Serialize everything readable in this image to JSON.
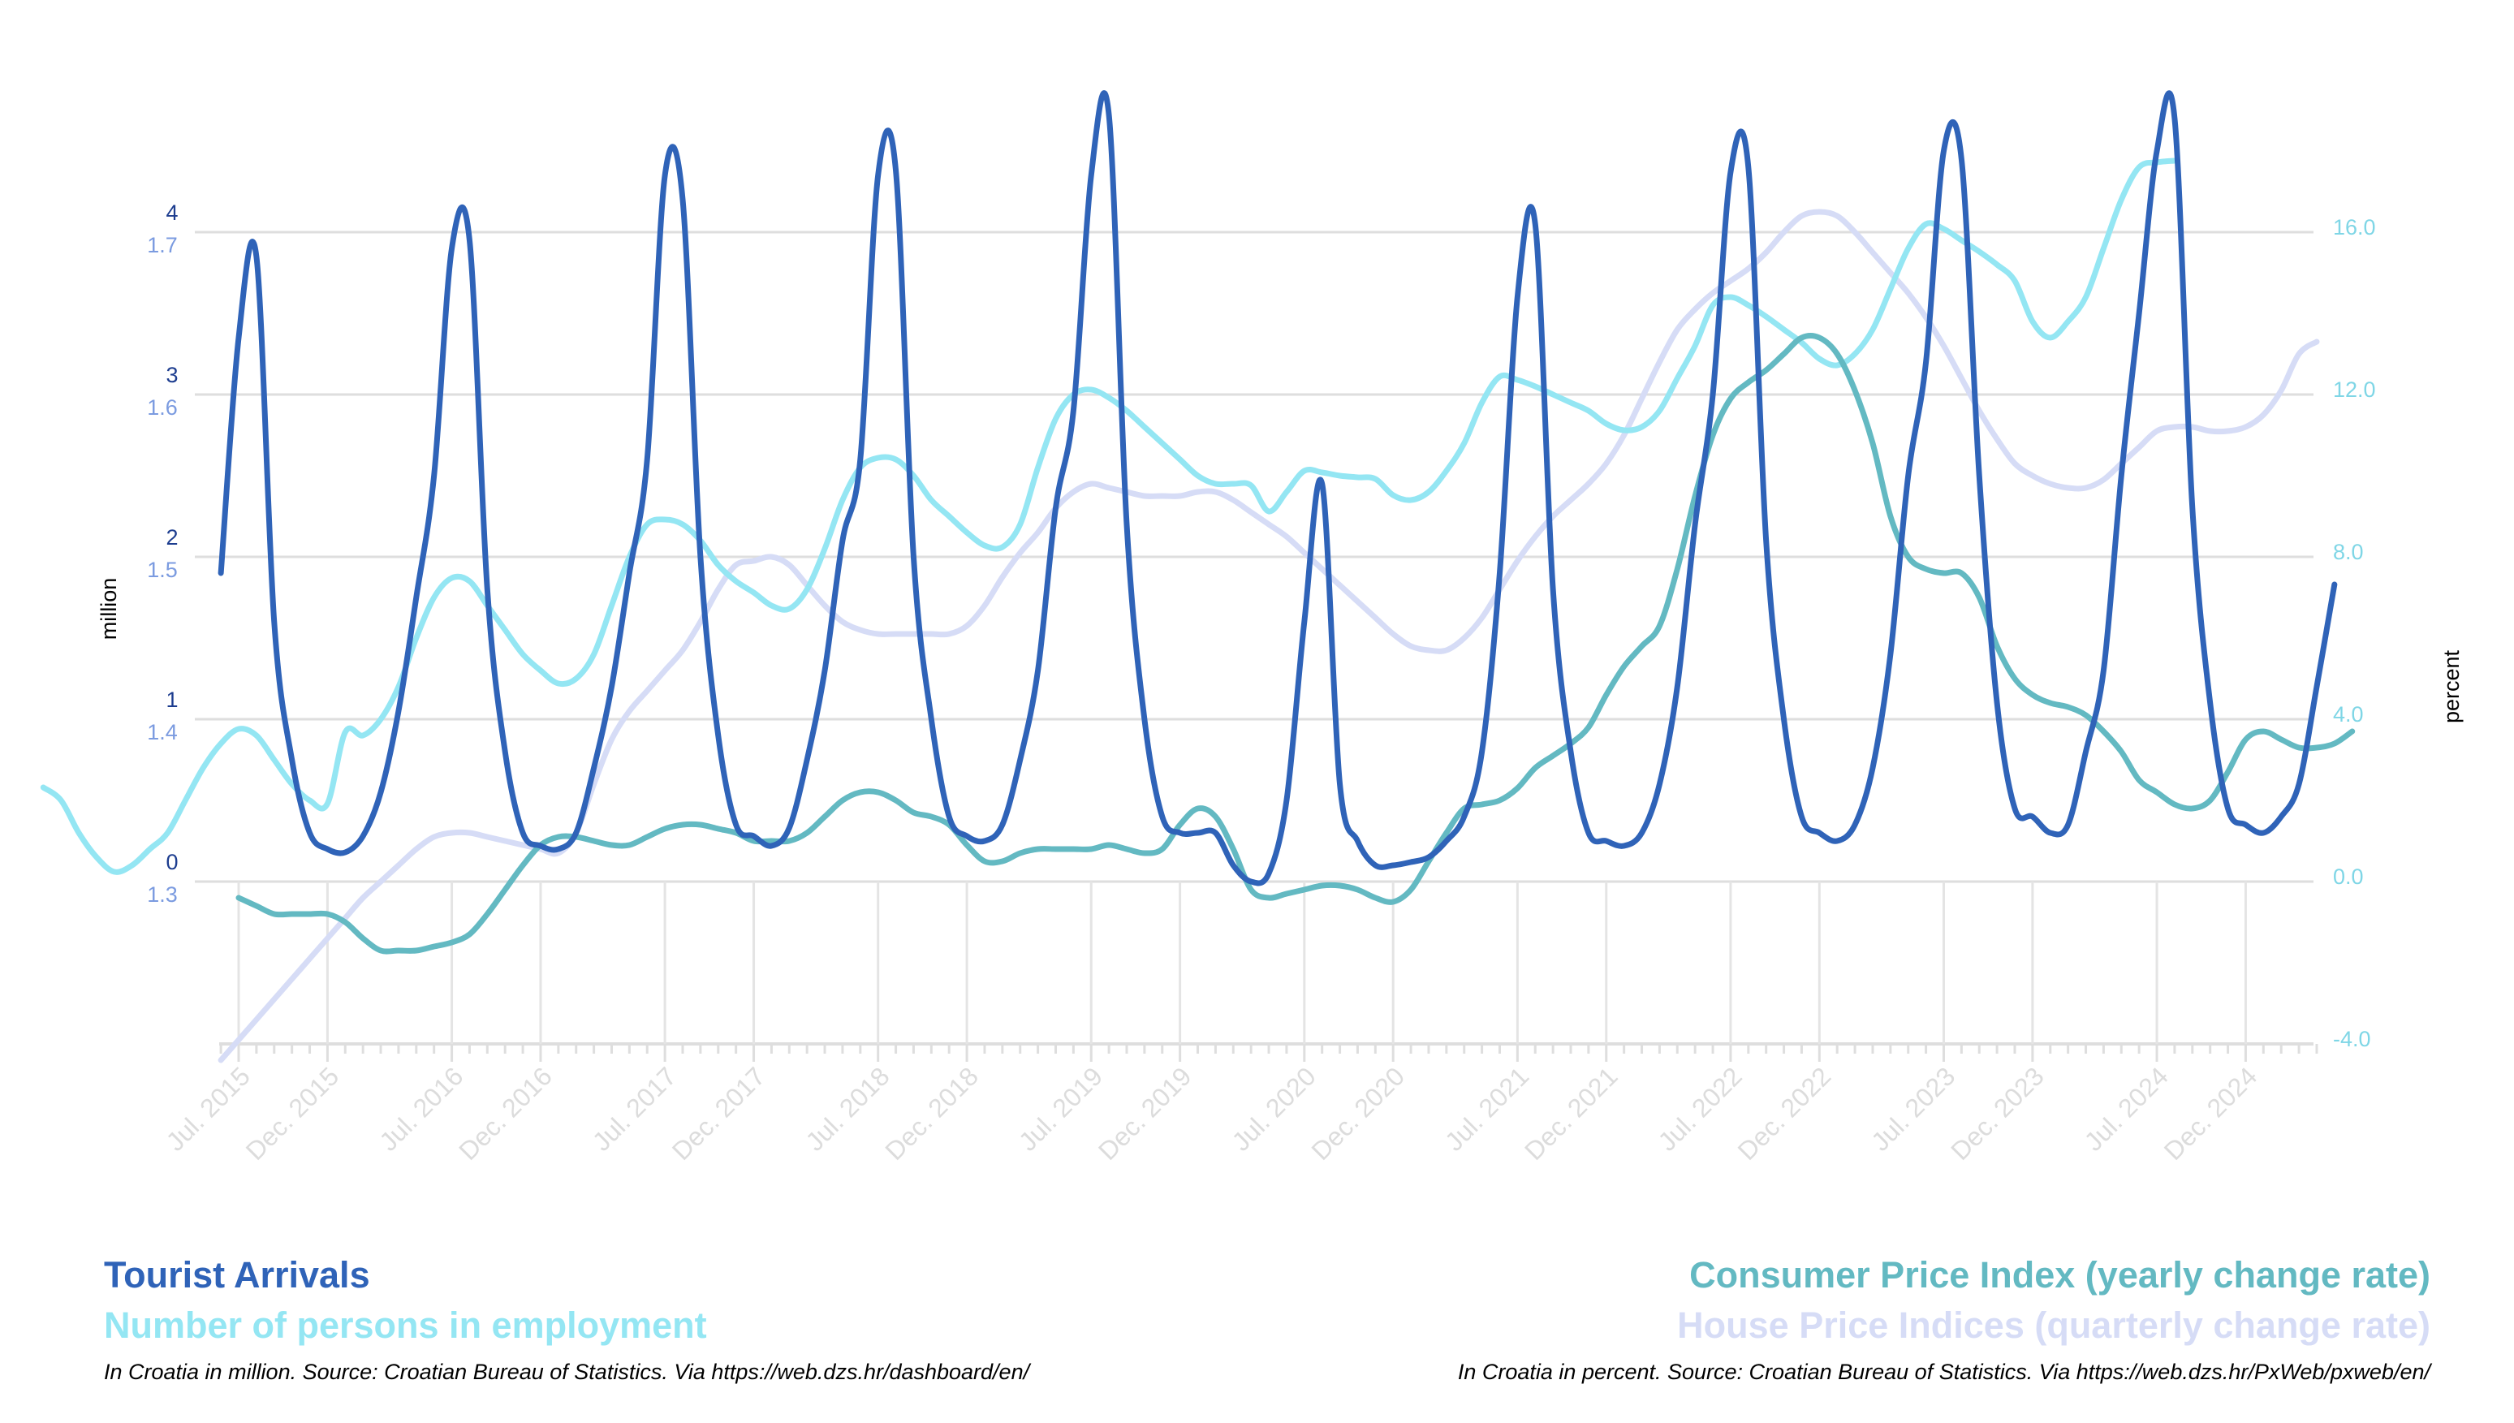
{
  "chart_data": {
    "type": "line",
    "y_label": "million",
    "y2_label": "percent",
    "notes": [
      "In Croatia in million. Source: Croatian Bureau of Statistics. Via https://web.dzs.hr/dashboard/en/",
      "In Croatia in percent. Source: Croatian Bureau of Statistics. Via https://web.dzs.hr/PxWeb/pxweb/en/"
    ],
    "categories": [
      null,
      null,
      null,
      null,
      null,
      null,
      null,
      null,
      null,
      null,
      null,
      "Jul. 2015",
      null,
      null,
      null,
      null,
      "Dec. 2015",
      null,
      null,
      null,
      null,
      null,
      null,
      "Jul. 2016",
      null,
      null,
      null,
      null,
      "Dec. 2016",
      null,
      null,
      null,
      null,
      null,
      null,
      "Jul. 2017",
      null,
      null,
      null,
      null,
      "Dec. 2017",
      null,
      null,
      null,
      null,
      null,
      null,
      "Jul. 2018",
      null,
      null,
      null,
      null,
      "Dec. 2018",
      null,
      null,
      null,
      null,
      null,
      null,
      "Jul. 2019",
      null,
      null,
      null,
      null,
      "Dec. 2019",
      null,
      null,
      null,
      null,
      null,
      null,
      "Jul. 2020",
      null,
      null,
      null,
      null,
      "Dec. 2020",
      null,
      null,
      null,
      null,
      null,
      null,
      "Jul. 2021",
      null,
      null,
      null,
      null,
      "Dec. 2021",
      null,
      null,
      null,
      null,
      null,
      null,
      "Jul. 2022",
      null,
      null,
      null,
      null,
      "Dec. 2022",
      null,
      null,
      null,
      null,
      null,
      null,
      "Jul. 2023",
      null,
      null,
      null,
      null,
      "Dec. 2023",
      null,
      null,
      null,
      null,
      null,
      null,
      "Jul. 2024",
      null,
      null,
      null,
      null,
      "Dec. 2024",
      null,
      null,
      null,
      null,
      null,
      null
    ],
    "series": [
      {
        "name": "Tourist Arrivals",
        "color": "#2f63b8",
        "axis": "y",
        "values": [
          null,
          null,
          null,
          null,
          null,
          null,
          null,
          null,
          null,
          null,
          1.9,
          3.35,
          3.85,
          1.6,
          0.75,
          0.3,
          0.2,
          0.18,
          0.28,
          0.55,
          1.05,
          1.75,
          2.5,
          3.9,
          3.95,
          1.8,
          0.8,
          0.3,
          0.22,
          0.2,
          0.3,
          0.7,
          1.2,
          1.9,
          2.6,
          4.35,
          4.2,
          2.0,
          0.9,
          0.35,
          0.28,
          0.22,
          0.33,
          0.75,
          1.3,
          2.1,
          2.6,
          4.35,
          4.38,
          2.0,
          1.0,
          0.4,
          0.28,
          0.25,
          0.35,
          0.75,
          1.3,
          2.3,
          2.9,
          4.35,
          4.72,
          2.2,
          1.0,
          0.4,
          0.3,
          0.3,
          0.3,
          0.1,
          0.0,
          0.05,
          0.5,
          1.6,
          2.45,
          0.6,
          0.25,
          0.1,
          0.1,
          0.12,
          0.15,
          0.25,
          0.4,
          0.8,
          1.9,
          3.6,
          4.05,
          1.8,
          0.8,
          0.3,
          0.25,
          0.22,
          0.3,
          0.6,
          1.2,
          2.2,
          3.0,
          4.37,
          4.4,
          2.1,
          1.0,
          0.4,
          0.3,
          0.25,
          0.35,
          0.7,
          1.4,
          2.5,
          3.2,
          4.5,
          4.45,
          2.5,
          1.1,
          0.45,
          0.4,
          0.3,
          0.35,
          0.8,
          1.3,
          2.5,
          3.5,
          4.5,
          4.7,
          2.3,
          1.1,
          0.45,
          0.35,
          0.3,
          0.4,
          0.6,
          1.2,
          1.83,
          null
        ]
      },
      {
        "name": "Number of persons in employment",
        "color": "#94e6f3",
        "axis": "y3",
        "values": [
          1.358,
          1.35,
          1.33,
          1.315,
          1.306,
          1.31,
          1.32,
          1.33,
          1.35,
          1.37,
          1.385,
          1.394,
          1.39,
          1.375,
          1.36,
          1.35,
          1.348,
          1.392,
          1.39,
          1.4,
          1.42,
          1.45,
          1.475,
          1.487,
          1.485,
          1.47,
          1.455,
          1.44,
          1.43,
          1.422,
          1.425,
          1.44,
          1.47,
          1.5,
          1.52,
          1.523,
          1.52,
          1.51,
          1.495,
          1.485,
          1.478,
          1.47,
          1.468,
          1.48,
          1.505,
          1.535,
          1.555,
          1.561,
          1.56,
          1.55,
          1.535,
          1.525,
          1.515,
          1.507,
          1.506,
          1.52,
          1.555,
          1.585,
          1.6,
          1.603,
          1.598,
          1.59,
          1.58,
          1.57,
          1.56,
          1.55,
          1.545,
          1.545,
          1.544,
          1.528,
          1.54,
          1.553,
          1.552,
          1.55,
          1.549,
          1.548,
          1.538,
          1.535,
          1.54,
          1.553,
          1.57,
          1.595,
          1.611,
          1.609,
          1.605,
          1.6,
          1.595,
          1.59,
          1.582,
          1.578,
          1.58,
          1.59,
          1.61,
          1.63,
          1.655,
          1.66,
          1.655,
          1.648,
          1.64,
          1.632,
          1.622,
          1.618,
          1.625,
          1.64,
          1.665,
          1.69,
          1.705,
          1.702,
          1.695,
          1.688,
          1.68,
          1.67,
          1.645,
          1.635,
          1.645,
          1.66,
          1.69,
          1.72,
          1.74,
          1.743,
          1.744,
          null,
          null,
          null,
          null,
          null,
          null,
          null,
          null,
          null,
          null
        ]
      },
      {
        "name": "Consumer Price Index (yearly change rate)",
        "color": "#63b9c2",
        "axis": "y2",
        "values": [
          null,
          null,
          null,
          null,
          null,
          null,
          null,
          null,
          null,
          null,
          null,
          -0.4,
          -0.6,
          -0.8,
          -0.8,
          -0.8,
          -0.8,
          -1.0,
          -1.4,
          -1.7,
          -1.7,
          -1.7,
          -1.6,
          -1.5,
          -1.3,
          -0.8,
          -0.2,
          0.4,
          0.9,
          1.1,
          1.1,
          1.0,
          0.9,
          0.9,
          1.1,
          1.3,
          1.4,
          1.4,
          1.3,
          1.2,
          1.0,
          1.0,
          1.0,
          1.2,
          1.6,
          2.0,
          2.2,
          2.2,
          2.0,
          1.7,
          1.6,
          1.4,
          0.9,
          0.5,
          0.5,
          0.7,
          0.8,
          0.8,
          0.8,
          0.8,
          0.9,
          0.8,
          0.7,
          0.8,
          1.4,
          1.8,
          1.6,
          0.8,
          -0.2,
          -0.4,
          -0.3,
          -0.2,
          -0.1,
          -0.1,
          -0.2,
          -0.4,
          -0.5,
          -0.2,
          0.5,
          1.2,
          1.8,
          1.9,
          2.0,
          2.3,
          2.8,
          3.1,
          3.4,
          3.8,
          4.6,
          5.3,
          5.8,
          6.3,
          7.7,
          9.5,
          11.0,
          11.9,
          12.3,
          12.6,
          13.0,
          13.4,
          13.4,
          13.0,
          12.1,
          10.8,
          9.0,
          8.0,
          7.7,
          7.6,
          7.6,
          7.0,
          5.8,
          5.0,
          4.6,
          4.4,
          4.3,
          4.1,
          3.7,
          3.2,
          2.5,
          2.2,
          1.9,
          1.8,
          2.0,
          2.7,
          3.5,
          3.7,
          3.5,
          3.3,
          3.3,
          3.4,
          3.7
        ]
      },
      {
        "name": "House Price Indices (quarterly change rate)",
        "color": "#d6dcf6",
        "axis": "y2",
        "values": [
          null,
          null,
          null,
          null,
          null,
          null,
          null,
          null,
          null,
          null,
          -4.4,
          -3.9,
          -3.4,
          -2.9,
          -2.4,
          -1.9,
          -1.4,
          -0.9,
          -0.4,
          0.0,
          0.4,
          0.8,
          1.1,
          1.2,
          1.2,
          1.1,
          1.0,
          0.9,
          0.8,
          0.7,
          1.2,
          2.4,
          3.5,
          4.2,
          4.7,
          5.2,
          5.7,
          6.4,
          7.2,
          7.8,
          7.9,
          8.0,
          7.8,
          7.3,
          6.8,
          6.4,
          6.2,
          6.1,
          6.1,
          6.1,
          6.1,
          6.1,
          6.3,
          6.8,
          7.5,
          8.1,
          8.6,
          9.2,
          9.6,
          9.8,
          9.7,
          9.6,
          9.5,
          9.5,
          9.5,
          9.6,
          9.6,
          9.4,
          9.1,
          8.8,
          8.5,
          8.1,
          7.7,
          7.3,
          6.9,
          6.5,
          6.1,
          5.8,
          5.7,
          5.7,
          6.0,
          6.5,
          7.2,
          7.9,
          8.5,
          9.0,
          9.4,
          9.8,
          10.3,
          11.0,
          11.9,
          12.8,
          13.6,
          14.1,
          14.5,
          14.8,
          15.1,
          15.5,
          16.0,
          16.4,
          16.5,
          16.4,
          16.0,
          15.5,
          15.0,
          14.5,
          13.9,
          13.2,
          12.4,
          11.6,
          10.9,
          10.3,
          10.0,
          9.8,
          9.7,
          9.7,
          9.9,
          10.3,
          10.7,
          11.1,
          11.2,
          11.2,
          11.1,
          11.1,
          11.2,
          11.5,
          12.1,
          13.0,
          13.3,
          null,
          null
        ]
      }
    ],
    "ylim": [
      -1,
      4.8
    ],
    "yticks": [
      0,
      1,
      2,
      3,
      4
    ],
    "y3lim": [
      1.2,
      1.78
    ],
    "y3ticks": [
      1.3,
      1.4,
      1.5,
      1.6,
      1.7
    ],
    "y2lim": [
      -4,
      19.2
    ],
    "y2ticks": [
      {
        "value": -4,
        "label": "-4.0"
      },
      {
        "value": 0,
        "label": "0.0"
      },
      {
        "value": 4,
        "label": "4.0"
      },
      {
        "value": 8,
        "label": "8.0"
      },
      {
        "value": 12,
        "label": "12.0"
      },
      {
        "value": 16,
        "label": "16.0"
      }
    ],
    "grid": true
  }
}
